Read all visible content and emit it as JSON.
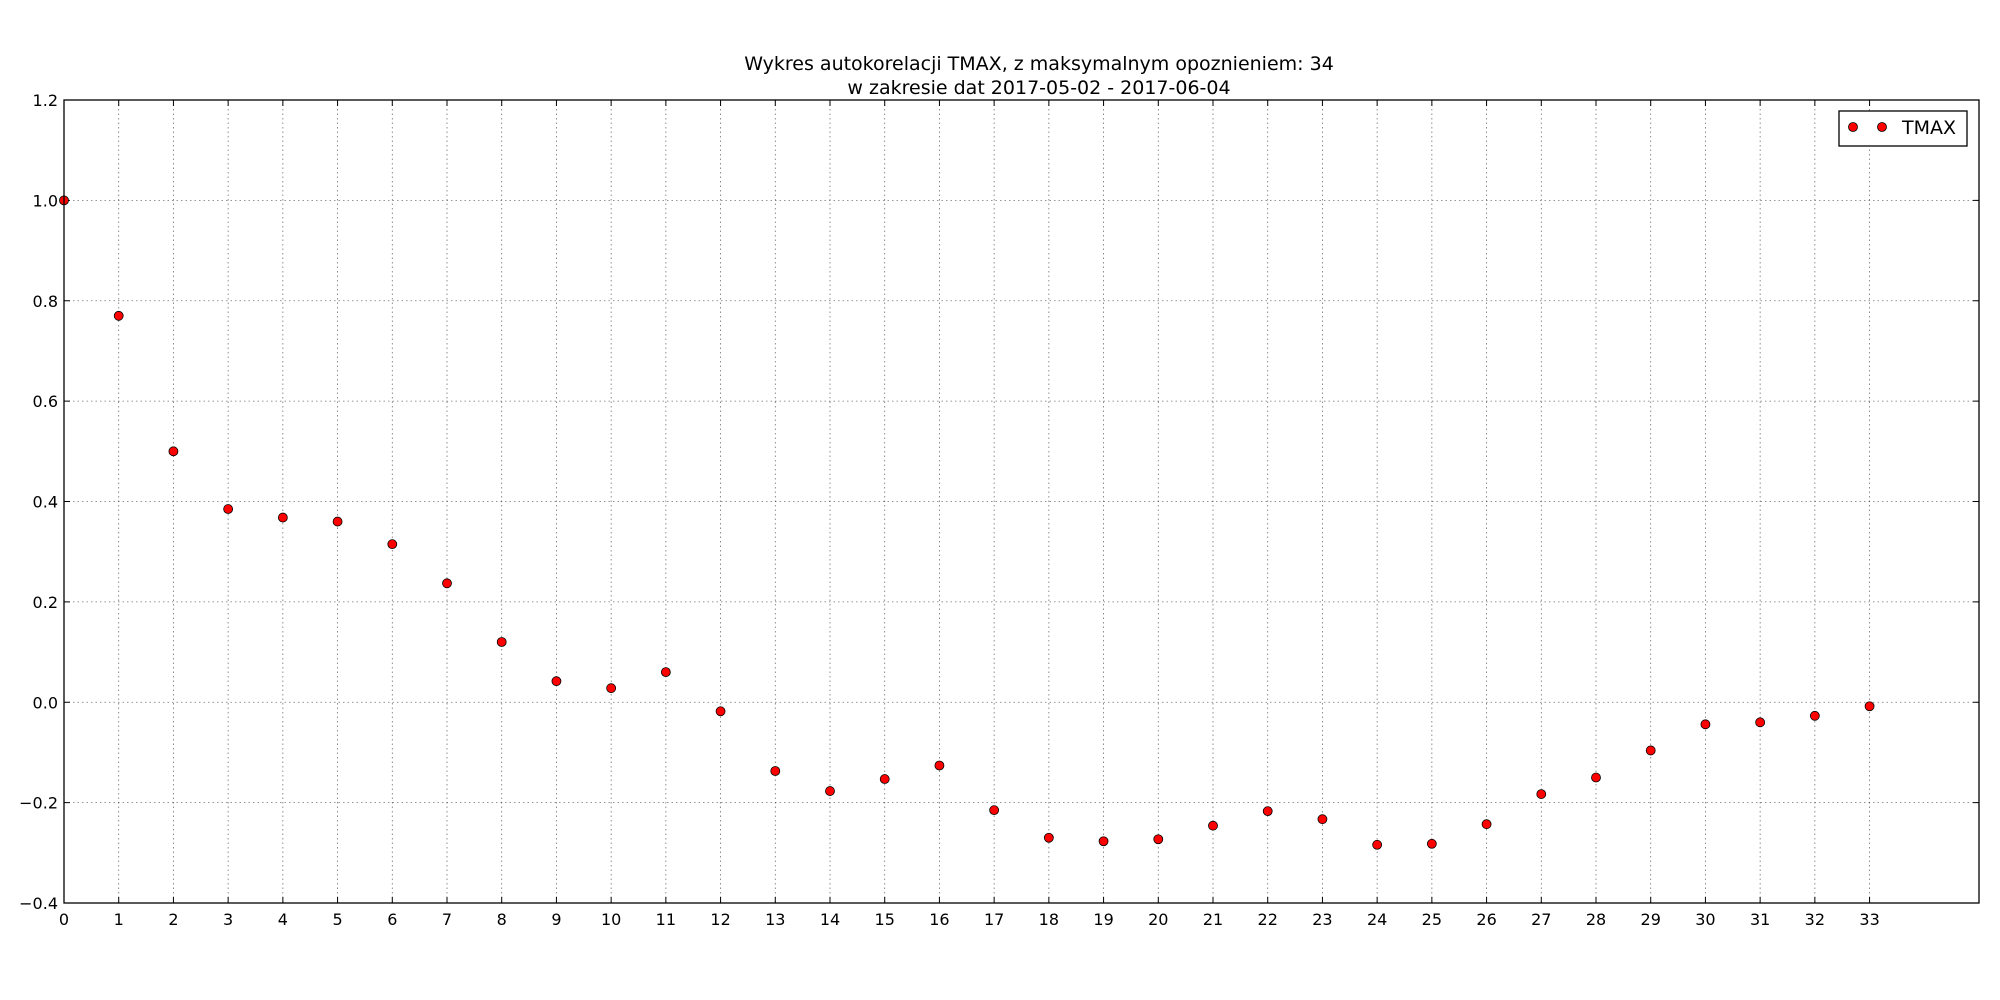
{
  "chart_data": {
    "type": "scatter",
    "title": "Wykres autokorelacji TMAX, z maksymalnym opoznieniem: 34",
    "subtitle": "w zakresie dat 2017-05-02 - 2017-06-04",
    "xlabel": "",
    "ylabel": "",
    "xlim": [
      0,
      35
    ],
    "ylim": [
      -0.4,
      1.2
    ],
    "x_ticks": [
      0,
      1,
      2,
      3,
      4,
      5,
      6,
      7,
      8,
      9,
      10,
      11,
      12,
      13,
      14,
      15,
      16,
      17,
      18,
      19,
      20,
      21,
      22,
      23,
      24,
      25,
      26,
      27,
      28,
      29,
      30,
      31,
      32,
      33
    ],
    "y_ticks": [
      -0.4,
      -0.2,
      0.0,
      0.2,
      0.4,
      0.6,
      0.8,
      1.0,
      1.2
    ],
    "y_tick_labels": [
      "−0.4",
      "−0.2",
      "0.0",
      "0.2",
      "0.4",
      "0.6",
      "0.8",
      "1.0",
      "1.2"
    ],
    "grid": true,
    "legend": {
      "placement": "top-right",
      "entries": [
        "TMAX"
      ]
    },
    "series": [
      {
        "name": "TMAX",
        "color": "#ff0000",
        "marker": "circle",
        "x": [
          0,
          1,
          2,
          3,
          4,
          5,
          6,
          7,
          8,
          9,
          10,
          11,
          12,
          13,
          14,
          15,
          16,
          17,
          18,
          19,
          20,
          21,
          22,
          23,
          24,
          25,
          26,
          27,
          28,
          29,
          30,
          31,
          32,
          33
        ],
        "y": [
          1.0,
          0.77,
          0.5,
          0.385,
          0.368,
          0.36,
          0.315,
          0.237,
          0.12,
          0.042,
          0.028,
          0.06,
          -0.018,
          -0.137,
          -0.177,
          -0.153,
          -0.126,
          -0.215,
          -0.27,
          -0.277,
          -0.273,
          -0.246,
          -0.217,
          -0.233,
          -0.284,
          -0.282,
          -0.243,
          -0.183,
          -0.15,
          -0.096,
          -0.044,
          -0.04,
          -0.027,
          -0.008
        ]
      }
    ]
  }
}
